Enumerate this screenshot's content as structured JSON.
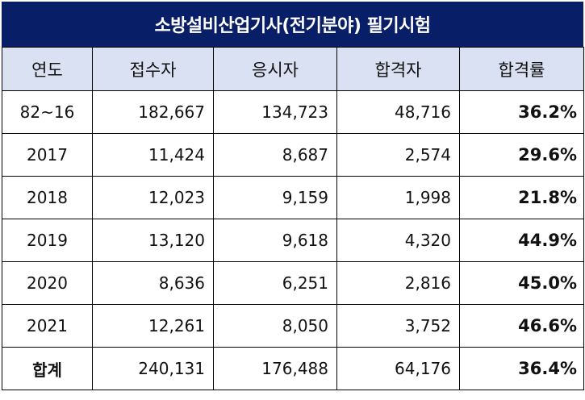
{
  "title": "소방설비산업기사(전기분야) 필기시험",
  "headers": {
    "year": "연도",
    "applicants": "접수자",
    "examinees": "응시자",
    "passers": "합격자",
    "pass_rate": "합격률"
  },
  "rows": [
    {
      "year": "82~16",
      "applicants": "182,667",
      "examinees": "134,723",
      "passers": "48,716",
      "pass_rate": "36.2%"
    },
    {
      "year": "2017",
      "applicants": "11,424",
      "examinees": "8,687",
      "passers": "2,574",
      "pass_rate": "29.6%"
    },
    {
      "year": "2018",
      "applicants": "12,023",
      "examinees": "9,159",
      "passers": "1,998",
      "pass_rate": "21.8%"
    },
    {
      "year": "2019",
      "applicants": "13,120",
      "examinees": "9,618",
      "passers": "4,320",
      "pass_rate": "44.9%"
    },
    {
      "year": "2020",
      "applicants": "8,636",
      "examinees": "6,251",
      "passers": "2,816",
      "pass_rate": "45.0%"
    },
    {
      "year": "2021",
      "applicants": "12,261",
      "examinees": "8,050",
      "passers": "3,752",
      "pass_rate": "46.6%"
    }
  ],
  "total": {
    "year": "합계",
    "applicants": "240,131",
    "examinees": "176,488",
    "passers": "64,176",
    "pass_rate": "36.4%"
  },
  "colors": {
    "title_background": "#081e66",
    "title_text": "#ffffff",
    "header_background": "#d9e1f2",
    "border": "#000000"
  }
}
